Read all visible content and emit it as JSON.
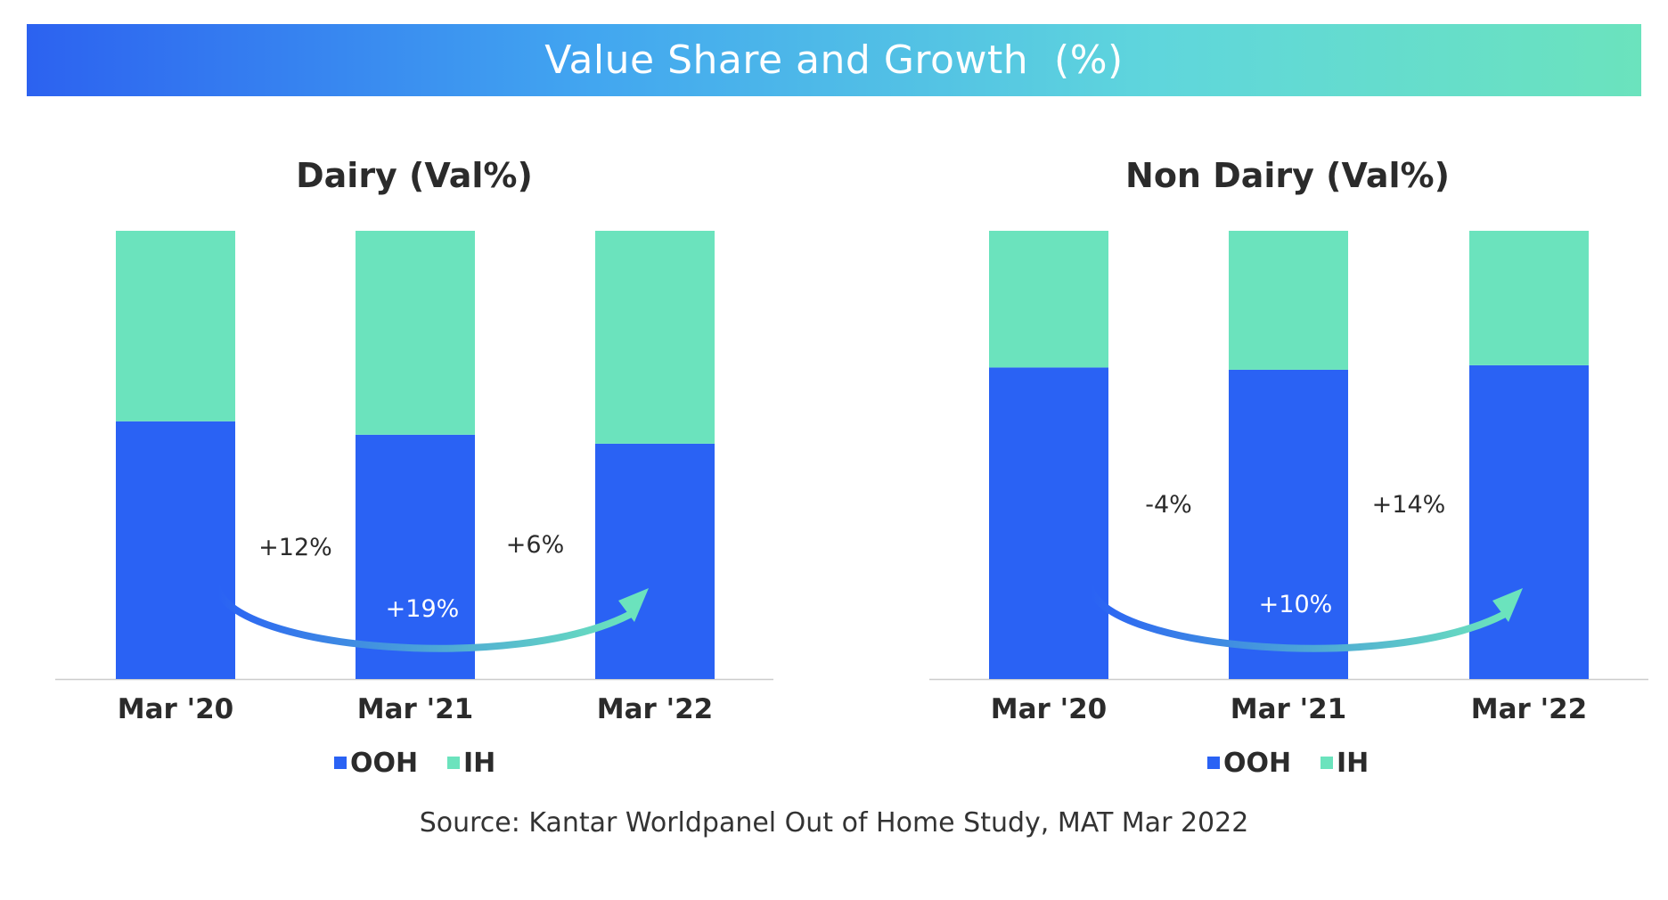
{
  "banner": {
    "title": "Value Share and Growth  (%)",
    "gradient": [
      "#2c62f0",
      "#42a6f0",
      "#5fd6dc",
      "#6be3bd"
    ]
  },
  "colors": {
    "OOH": "#2a62f4",
    "IH": "#6be3bd",
    "axis": "#cccccc"
  },
  "legend": [
    "OOH",
    "IH"
  ],
  "chart_data": [
    {
      "type": "bar",
      "stacked": true,
      "title": "Dairy (Val%)",
      "categories": [
        "Mar '20",
        "Mar '21",
        "Mar '22"
      ],
      "series": [
        {
          "name": "OOH",
          "values": [
            57.5,
            54.5,
            52.5
          ]
        },
        {
          "name": "IH",
          "values": [
            42.5,
            45.5,
            47.5
          ]
        }
      ],
      "ylim": [
        0,
        100
      ],
      "legend_position": "bottom",
      "annotations": {
        "step_growth": [
          "+12%",
          "+6%"
        ],
        "overall_growth": "+19%"
      }
    },
    {
      "type": "bar",
      "stacked": true,
      "title": "Non Dairy  (Val%)",
      "categories": [
        "Mar '20",
        "Mar '21",
        "Mar '22"
      ],
      "series": [
        {
          "name": "OOH",
          "values": [
            69.5,
            69.0,
            70.0
          ]
        },
        {
          "name": "IH",
          "values": [
            30.5,
            31.0,
            30.0
          ]
        }
      ],
      "ylim": [
        0,
        100
      ],
      "legend_position": "bottom",
      "annotations": {
        "step_growth": [
          "-4%",
          "+14%"
        ],
        "overall_growth": "+10%"
      }
    }
  ],
  "source": "Source: Kantar Worldpanel Out of Home Study, MAT Mar 2022"
}
